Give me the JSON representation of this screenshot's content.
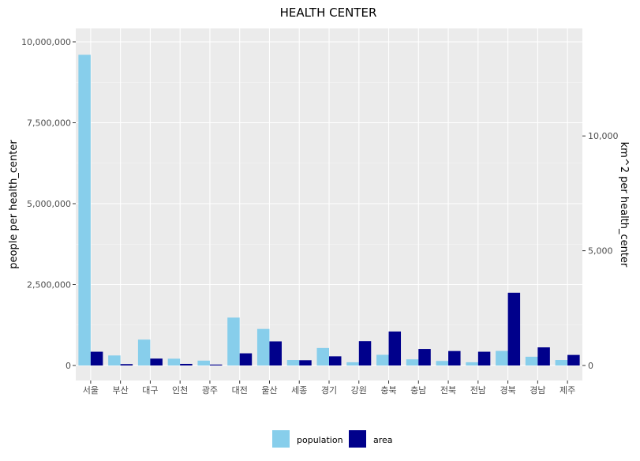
{
  "chart_data": {
    "type": "bar",
    "title": "HEALTH CENTER",
    "categories": [
      "서울",
      "부산",
      "대구",
      "인천",
      "광주",
      "대전",
      "울산",
      "세종",
      "경기",
      "강원",
      "충북",
      "충남",
      "전북",
      "전남",
      "경북",
      "경남",
      "제주"
    ],
    "series": [
      {
        "name": "population",
        "axis": "left",
        "color": "#87CEEB",
        "values": [
          9600000,
          310000,
          800000,
          210000,
          150000,
          1480000,
          1130000,
          170000,
          540000,
          100000,
          330000,
          190000,
          140000,
          100000,
          450000,
          270000,
          170000
        ]
      },
      {
        "name": "area",
        "axis": "right",
        "color": "#00008B",
        "values": [
          600,
          60,
          300,
          70,
          40,
          530,
          1050,
          230,
          400,
          1060,
          1480,
          720,
          630,
          600,
          3170,
          790,
          460
        ]
      }
    ],
    "ylabel": "people per health_center",
    "ylabel_right": "km^2 per health_center",
    "y_ticks": [
      "0",
      "2,500,000",
      "5,000,000",
      "7,500,000",
      "10,000,000"
    ],
    "y_right_ticks": [
      "0",
      "5,000",
      "10,000"
    ],
    "ylim": [
      0,
      10000000
    ],
    "ylim_right": [
      0,
      14100
    ],
    "legend_position": "bottom",
    "grid": true,
    "background": "#EBEBEB"
  }
}
